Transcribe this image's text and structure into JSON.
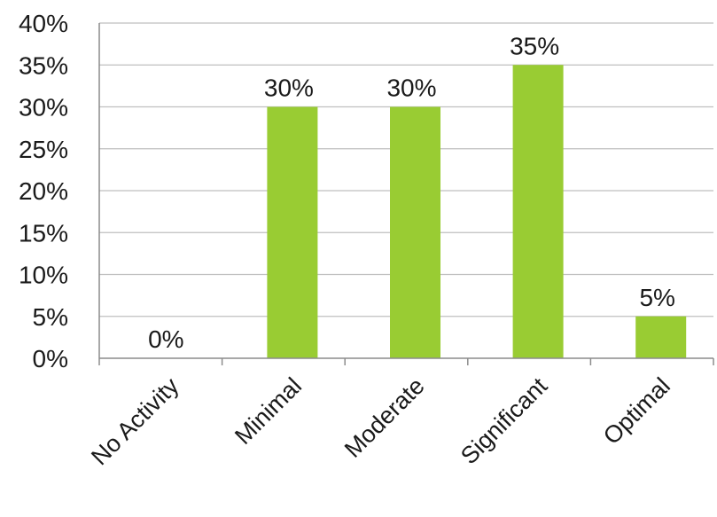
{
  "chart_data": {
    "type": "bar",
    "categories": [
      "No Activity",
      "Minimal",
      "Moderate",
      "Significant",
      "Optimal"
    ],
    "values": [
      0,
      30,
      30,
      35,
      5
    ],
    "data_labels": [
      "0%",
      "30%",
      "30%",
      "35%",
      "5%"
    ],
    "y_ticks": [
      0,
      5,
      10,
      15,
      20,
      25,
      30,
      35,
      40
    ],
    "y_tick_labels": [
      "0%",
      "5%",
      "10%",
      "15%",
      "20%",
      "25%",
      "30%",
      "35%",
      "40%"
    ],
    "ylim": [
      0,
      40
    ],
    "y_unit": "%",
    "grid": true,
    "legend": "none",
    "bar_color": "#99CC33",
    "gridline_color": "#bfbfbf",
    "axis_color": "#8c8c8c"
  }
}
